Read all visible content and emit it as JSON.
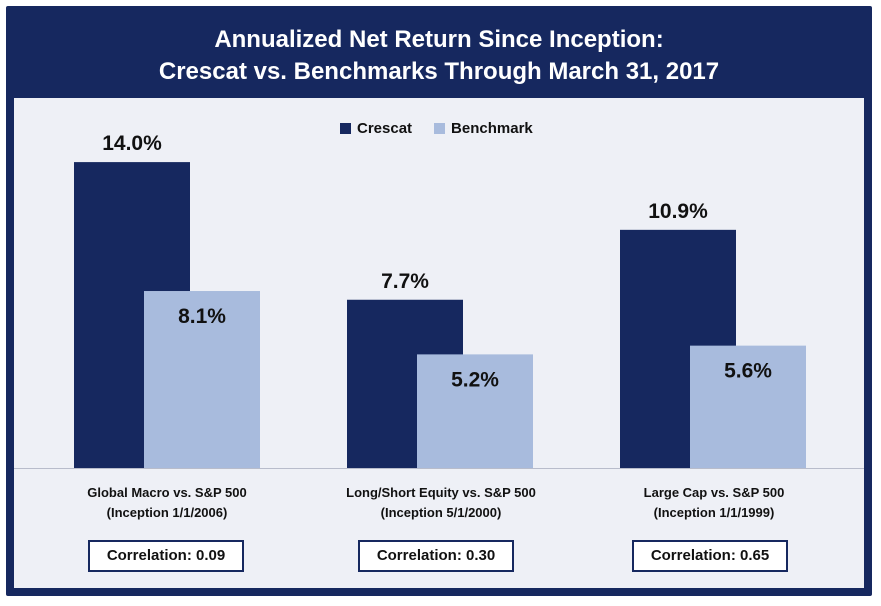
{
  "chart_data": {
    "type": "bar",
    "title": "Annualized Net Return Since Inception:",
    "subtitle": "Crescat vs. Benchmarks Through March 31, 2017",
    "categories": [
      {
        "name": "Global Macro vs. S&P 500",
        "note": "(Inception 1/1/2006)",
        "correlation": "Correlation: 0.09"
      },
      {
        "name": "Long/Short Equity vs. S&P 500",
        "note": "(Inception 5/1/2000)",
        "correlation": "Correlation: 0.30"
      },
      {
        "name": "Large Cap vs. S&P 500",
        "note": "(Inception 1/1/1999)",
        "correlation": "Correlation: 0.65"
      }
    ],
    "series": [
      {
        "name": "Crescat",
        "values": [
          14.0,
          7.7,
          10.9
        ],
        "labels": [
          "14.0%",
          "7.7%",
          "10.9%"
        ],
        "color": "#16285f"
      },
      {
        "name": "Benchmark",
        "values": [
          8.1,
          5.2,
          5.6
        ],
        "labels": [
          "8.1%",
          "5.2%",
          "5.6%"
        ],
        "color": "#a8bbdd"
      }
    ],
    "ylim": [
      0,
      16
    ],
    "grid": false,
    "legend_position": "top-center"
  }
}
